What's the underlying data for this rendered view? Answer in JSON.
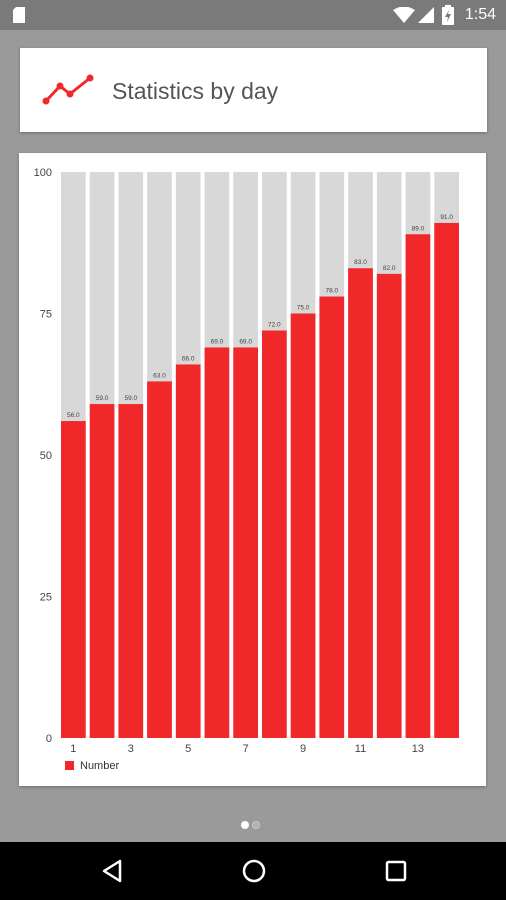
{
  "status_bar": {
    "time": "1:54",
    "icons": [
      "sd-card-icon",
      "wifi-icon",
      "signal-icon",
      "battery-charging-icon"
    ]
  },
  "header": {
    "title": "Statistics by day",
    "icon": "line-chart-icon",
    "accent_color": "#f0282a"
  },
  "chart_data": {
    "type": "bar",
    "categories": [
      "1",
      "2",
      "3",
      "4",
      "5",
      "6",
      "7",
      "8",
      "9",
      "10",
      "11",
      "12",
      "13",
      "14"
    ],
    "x_tick_labels": [
      "1",
      "3",
      "5",
      "7",
      "9",
      "11",
      "13"
    ],
    "series": [
      {
        "name": "Number",
        "color": "#f0282a",
        "values": [
          56,
          59,
          59,
          63,
          66,
          69,
          69,
          72,
          75,
          78,
          83,
          82,
          89,
          91
        ],
        "value_labels": [
          "56.0",
          "59.0",
          "59.0",
          "63.0",
          "66.0",
          "69.0",
          "69.0",
          "72.0",
          "75.0",
          "78.0",
          "83.0",
          "82.0",
          "89.0",
          "91.0"
        ]
      }
    ],
    "ylim": [
      0,
      100
    ],
    "y_ticks": [
      "0",
      "25",
      "50",
      "75",
      "100"
    ],
    "background_bar_color": "#d8d8d8",
    "legend_position": "bottom-left",
    "grid": false
  },
  "pager": {
    "pages": 2,
    "current": 1
  },
  "nav_bar": {
    "buttons": [
      "back-icon",
      "home-icon",
      "recents-icon"
    ]
  }
}
